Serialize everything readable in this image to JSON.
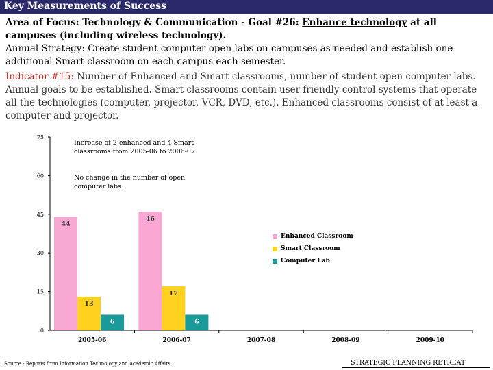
{
  "header": {
    "title": "Key Measurements of Success"
  },
  "focus": {
    "prefix": "Area of Focus: Technology & Communication - Goal #26: ",
    "underline": "Enhance technology",
    "suffix": " at all campuses (including wireless technology)."
  },
  "strategy": {
    "text": "Annual Strategy: Create student computer open labs on campuses as needed and establish one additional Smart classroom on each campus each semester."
  },
  "indicator": {
    "label": "Indicator #15:",
    "text": " Number of Enhanced and Smart classrooms, number of student open computer labs. Annual goals to be established. Smart classrooms contain user friendly control systems that operate all the technologies (computer, projector, VCR, DVD, etc.). Enhanced classrooms consist of at least a computer and projector."
  },
  "annotations": [
    "Increase of 2 enhanced and 4 Smart classrooms from 2005-06 to 2006-07.",
    "No change in the number of open computer labs."
  ],
  "chart_data": {
    "type": "bar",
    "categories": [
      "2005-06",
      "2006-07",
      "2007-08",
      "2008-09",
      "2009-10"
    ],
    "series": [
      {
        "name": "Enhanced Classroom",
        "color": "#f9a8d4",
        "values": [
          44,
          46,
          null,
          null,
          null
        ]
      },
      {
        "name": "Smart Classroom",
        "color": "#ffd21f",
        "values": [
          13,
          17,
          null,
          null,
          null
        ]
      },
      {
        "name": "Computer Lab",
        "color": "#1a9b9a",
        "values": [
          6,
          6,
          null,
          null,
          null
        ]
      }
    ],
    "yticks": [
      0,
      15,
      30,
      45,
      60,
      75
    ],
    "ylim": [
      0,
      75
    ],
    "legend": "right",
    "grid": false
  },
  "footer": {
    "source": "Source - Reports from Information Technology and Academic Affairs",
    "right": "STRATEGIC PLANNING RETREAT"
  }
}
